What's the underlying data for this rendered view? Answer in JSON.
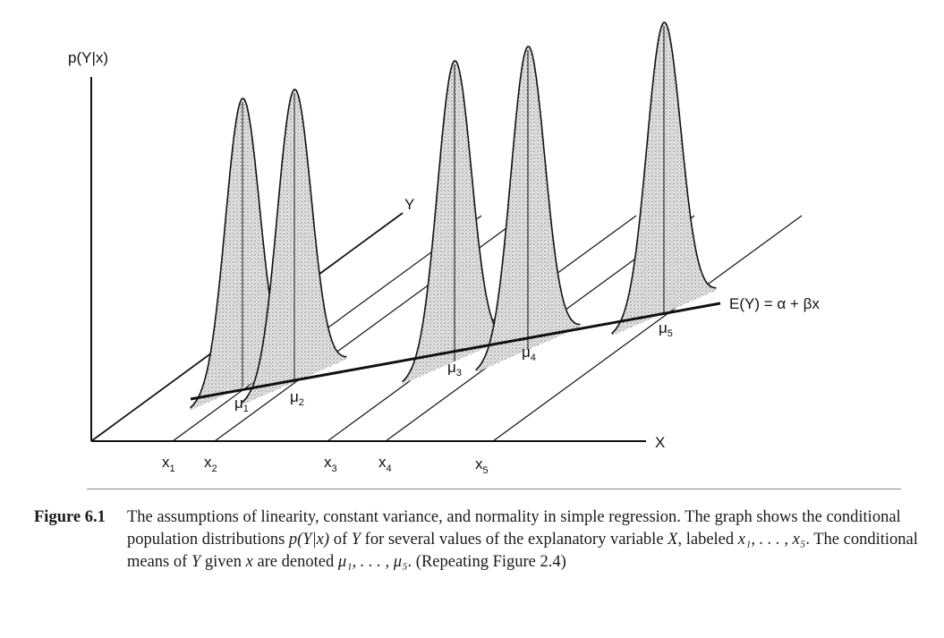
{
  "figure": {
    "y_axis_label": "p(Y|x)",
    "x_axis_label": "X",
    "y_depth_label": "Y",
    "regression_label": "E(Y) = α + βx",
    "x_ticks": [
      {
        "base": "x",
        "sub": "1"
      },
      {
        "base": "x",
        "sub": "2"
      },
      {
        "base": "x",
        "sub": "3"
      },
      {
        "base": "x",
        "sub": "4"
      },
      {
        "base": "x",
        "sub": "5"
      }
    ],
    "means": [
      {
        "base": "μ",
        "sub": "1"
      },
      {
        "base": "μ",
        "sub": "2"
      },
      {
        "base": "μ",
        "sub": "3"
      },
      {
        "base": "μ",
        "sub": "4"
      },
      {
        "base": "μ",
        "sub": "5"
      }
    ]
  },
  "caption": {
    "label": "Figure 6.1",
    "t1": "The assumptions of linearity, constant variance, and normality in simple regression. The graph shows the conditional population distributions ",
    "t2": "p(Y|x)",
    "t3": " of ",
    "t4": "Y",
    "t5": " for several values of the explanatory variable ",
    "t6": "X",
    "t7": ", labeled ",
    "t8": "x₁, . . . , x₅",
    "t9": ". The conditional means of ",
    "t10": "Y",
    "t11": " given ",
    "t12": "x",
    "t13": " are denoted ",
    "t14": "μ₁, . . . , μ₅",
    "t15": ". (Repeating Figure 2.4)"
  },
  "colors": {
    "ink": "#111111",
    "shade": "#c8c8c8",
    "rule": "#888888"
  }
}
